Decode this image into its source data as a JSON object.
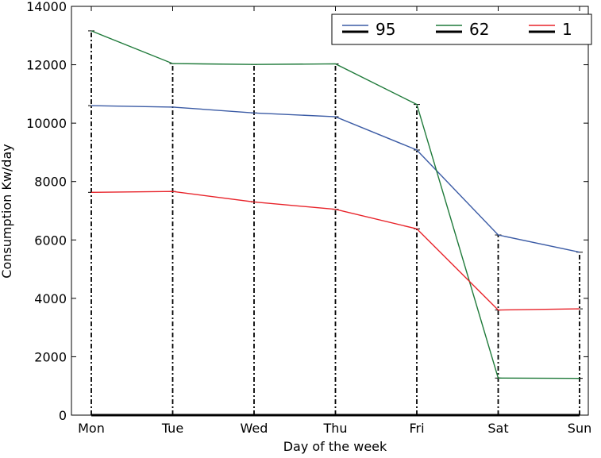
{
  "chart_data": {
    "type": "line",
    "title": "",
    "xlabel": "Day of the week",
    "ylabel": "Consumption Kw/day",
    "categories": [
      "Mon",
      "Tue",
      "Wed",
      "Thu",
      "Fri",
      "Sat",
      "Sun"
    ],
    "ylim": [
      0,
      14000
    ],
    "yticks": [
      0,
      2000,
      4000,
      6000,
      8000,
      10000,
      12000,
      14000
    ],
    "grid": false,
    "legend_position": "top-right",
    "series": [
      {
        "name": "95",
        "color": "#3b5ba5",
        "values": [
          10600,
          10550,
          10350,
          10220,
          9080,
          6170,
          5580
        ]
      },
      {
        "name": "62",
        "color": "#1f7a3a",
        "values": [
          13160,
          12040,
          12010,
          12030,
          10640,
          1270,
          1260
        ]
      },
      {
        "name": "1",
        "color": "#e8232a",
        "values": [
          7630,
          7660,
          7300,
          7050,
          6380,
          3600,
          3640
        ]
      }
    ],
    "error_bars": {
      "style": "dash-dot",
      "color": "#000000",
      "from": 0,
      "to": "max"
    }
  }
}
